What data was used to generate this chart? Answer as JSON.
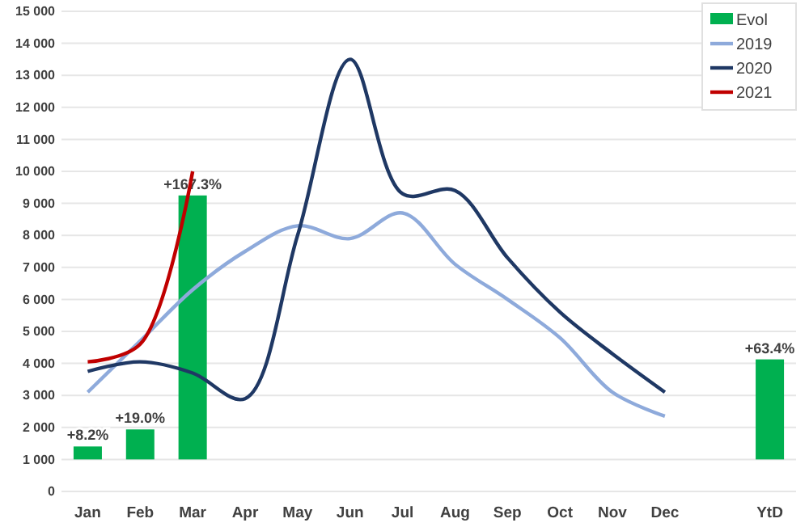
{
  "chart_data": {
    "type": "line",
    "categories": [
      "Jan",
      "Feb",
      "Mar",
      "Apr",
      "May",
      "Jun",
      "Jul",
      "Aug",
      "Sep",
      "Oct",
      "Nov",
      "Dec",
      null,
      "YtD"
    ],
    "ylim": [
      0,
      15000
    ],
    "yticks": [
      {
        "value": 0,
        "label": "0"
      },
      {
        "value": 1000,
        "label": "1 000"
      },
      {
        "value": 2000,
        "label": "2 000"
      },
      {
        "value": 3000,
        "label": "3 000"
      },
      {
        "value": 4000,
        "label": "4 000"
      },
      {
        "value": 5000,
        "label": "5 000"
      },
      {
        "value": 6000,
        "label": "6 000"
      },
      {
        "value": 7000,
        "label": "7 000"
      },
      {
        "value": 8000,
        "label": "8 000"
      },
      {
        "value": 9000,
        "label": "9 000"
      },
      {
        "value": 10000,
        "label": "10 000"
      },
      {
        "value": 11000,
        "label": "11 000"
      },
      {
        "value": 12000,
        "label": "12 000"
      },
      {
        "value": 13000,
        "label": "13 000"
      },
      {
        "value": 14000,
        "label": "14 000"
      },
      {
        "value": 15000,
        "label": "15 000"
      }
    ],
    "y2lim": [
      -20.3,
      284
    ],
    "grid": "y",
    "legend": "top right",
    "marker": "none",
    "line_style": "solid",
    "series": [
      {
        "name": "Evol",
        "type": "bar",
        "axis": "y2",
        "color": "#00b050",
        "values": [
          8.2,
          19.0,
          167.3,
          null,
          null,
          null,
          null,
          null,
          null,
          null,
          null,
          null,
          null,
          63.4
        ],
        "value_labels": [
          "+8.2%",
          "+19.0%",
          "+167.3%",
          null,
          null,
          null,
          null,
          null,
          null,
          null,
          null,
          null,
          null,
          "+63.4%"
        ]
      },
      {
        "name": "2019",
        "color": "#8eaadb",
        "values": [
          3100,
          4700,
          6300,
          7500,
          8300,
          7900,
          8700,
          7100,
          6000,
          4800,
          3100,
          2350,
          null,
          null
        ]
      },
      {
        "name": "2020",
        "color": "#1f3864",
        "values": [
          3750,
          4050,
          3700,
          2900,
          8000,
          13500,
          9300,
          9400,
          7300,
          5600,
          4300,
          3100,
          null,
          null
        ]
      },
      {
        "name": "2021",
        "color": "#c00000",
        "values": [
          4050,
          4600,
          10000,
          null,
          null,
          null,
          null,
          null,
          null,
          null,
          null,
          null,
          null,
          null
        ]
      }
    ]
  }
}
